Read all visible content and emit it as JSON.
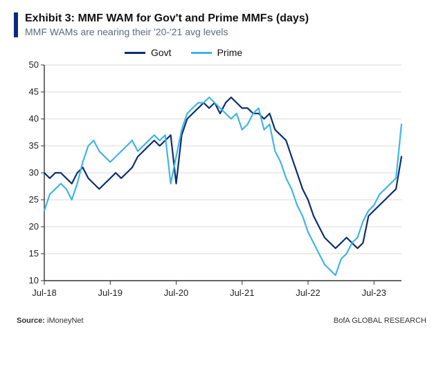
{
  "header": {
    "title": "Exhibit 3: MMF WAM for Gov't and Prime MMFs (days)",
    "subtitle": "MMF WAMs are nearing their '20-'21 avg levels",
    "accent_color": "#0a2a7a"
  },
  "footer": {
    "source_label": "Source:",
    "source_value": "iMoneyNet",
    "attribution": "BofA GLOBAL RESEARCH"
  },
  "chart": {
    "type": "line",
    "background_color": "#ffffff",
    "axis_color": "#333333",
    "grid_color": "#d9d9d9",
    "label_fontsize": 13,
    "ylim": [
      10,
      50
    ],
    "ytick_step": 5,
    "x_labels": [
      "Jul-18",
      "Jul-19",
      "Jul-20",
      "Jul-21",
      "Jul-22",
      "Jul-23"
    ],
    "x_label_step": 12,
    "series": [
      {
        "name": "Govt",
        "color": "#0b2e6f",
        "line_width": 2.2,
        "values": [
          30,
          29,
          30,
          30,
          29,
          28,
          30,
          31,
          29,
          28,
          27,
          28,
          29,
          30,
          29,
          30,
          31,
          33,
          34,
          35,
          36,
          35,
          36,
          37,
          28,
          37,
          40,
          41,
          42,
          43,
          42,
          43,
          41,
          43,
          44,
          43,
          42,
          42,
          41,
          41,
          40,
          41,
          38,
          37,
          36,
          33,
          30,
          27,
          25,
          22,
          20,
          18,
          17,
          16,
          17,
          18,
          17,
          16,
          17,
          22,
          23,
          24,
          25,
          26,
          27,
          33
        ]
      },
      {
        "name": "Prime",
        "color": "#3fb4e6",
        "line_width": 2.2,
        "values": [
          23,
          26,
          27,
          28,
          27,
          25,
          28,
          32,
          35,
          36,
          34,
          33,
          32,
          33,
          34,
          35,
          36,
          34,
          35,
          36,
          37,
          36,
          37,
          28,
          33,
          38,
          41,
          42,
          43,
          43,
          44,
          43,
          42,
          41,
          40,
          41,
          38,
          39,
          41,
          42,
          38,
          39,
          34,
          32,
          29,
          27,
          24,
          22,
          19,
          17,
          15,
          13,
          12,
          11,
          14,
          15,
          17,
          18,
          21,
          23,
          24,
          26,
          27,
          28,
          29,
          39
        ]
      }
    ]
  }
}
